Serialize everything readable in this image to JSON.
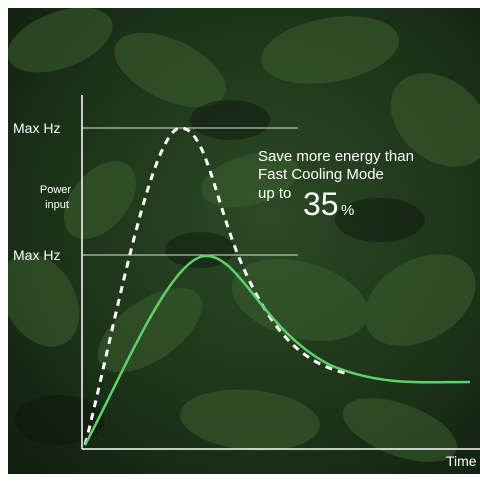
{
  "y_axis": {
    "label": "Power input",
    "levels": [
      "Max Hz",
      "Max Hz"
    ]
  },
  "x_axis": {
    "label": "Time"
  },
  "callout": {
    "lines": [
      "Save more energy than",
      "Fast Cooling Mode"
    ],
    "prefix": "up to",
    "figure": "35",
    "unit": "%"
  }
}
